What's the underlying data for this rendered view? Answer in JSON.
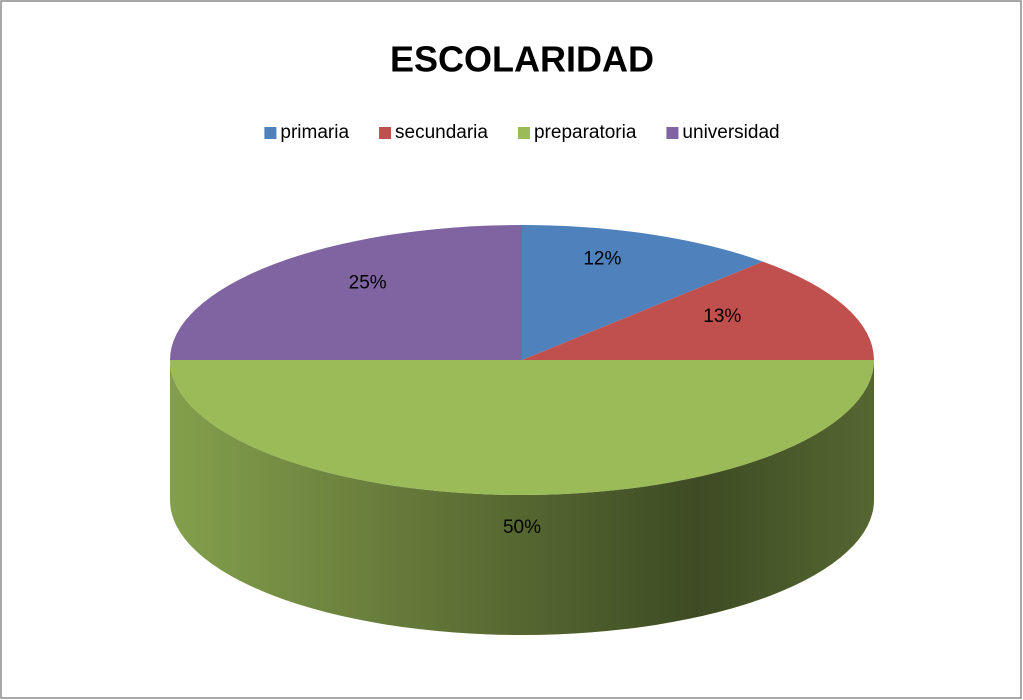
{
  "chart_data": {
    "type": "pie",
    "title": "ESCOLARIDAD",
    "categories": [
      "primaria",
      "secundaria",
      "preparatoria",
      "universidad"
    ],
    "values": [
      12,
      13,
      50,
      25
    ],
    "value_labels": [
      "12%",
      "13%",
      "50%",
      "25%"
    ],
    "colors": [
      "#4f81bd",
      "#c0504d",
      "#9bbb59",
      "#8064a2"
    ],
    "legend": "top"
  }
}
